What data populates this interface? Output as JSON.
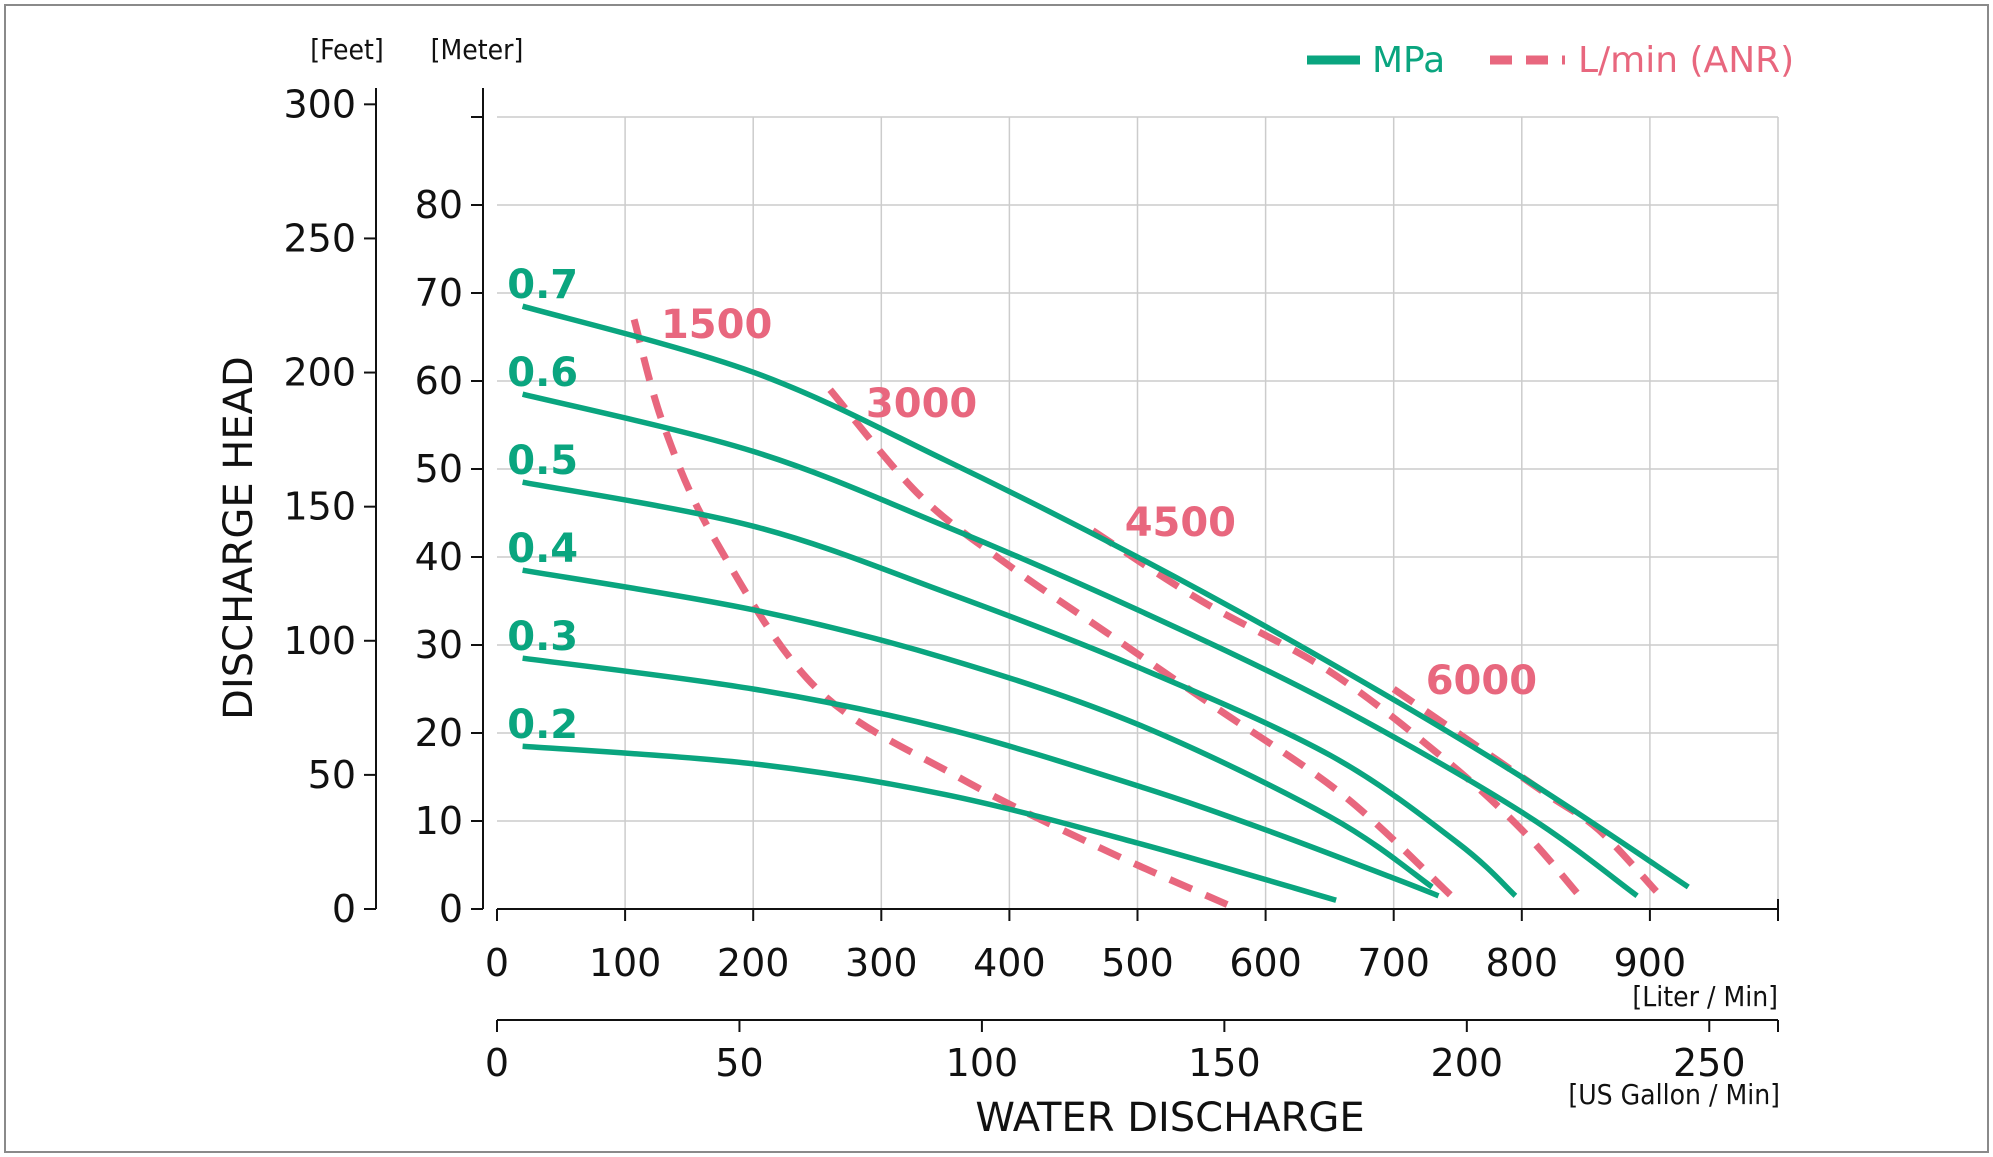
{
  "chart_data": {
    "type": "line",
    "title": "",
    "colors": {
      "pressure": "#0aa57f",
      "air": "#e8677e",
      "grid": "#cccccc"
    },
    "legend": {
      "placement": "top-right",
      "entries": [
        {
          "label": "MPa",
          "style": "solid",
          "color": "#0aa57f"
        },
        {
          "label": "L/min (ANR)",
          "style": "dashed",
          "color": "#e8677e"
        }
      ]
    },
    "x_axis": {
      "xlabel": "WATER DISCHARGE",
      "unit_liter": "[Liter / Min]",
      "unit_gallon": "[US Gallon / Min]",
      "liter_ticks": [
        "0",
        "100",
        "200",
        "300",
        "400",
        "500",
        "600",
        "700",
        "800",
        "900"
      ],
      "gallon_ticks": [
        "0",
        "50",
        "100",
        "150",
        "200",
        "250"
      ],
      "xlim": [
        0,
        1000
      ]
    },
    "y_axis": {
      "ylabel": "DISCHARGE HEAD",
      "unit_feet": "[Feet]",
      "unit_meter": "[Meter]",
      "meter_ticks": [
        "0",
        "10",
        "20",
        "30",
        "40",
        "50",
        "60",
        "70",
        "80"
      ],
      "feet_ticks": [
        "0",
        "50",
        "100",
        "150",
        "200",
        "250",
        "300"
      ],
      "ylim": [
        0,
        90
      ]
    },
    "grid": true,
    "series": [
      {
        "name": "0.7",
        "kind": "pressure",
        "x": [
          20,
          200,
          350,
          500,
          650,
          800,
          930
        ],
        "y": [
          68.5,
          61,
          51,
          40,
          28,
          15,
          2.5
        ]
      },
      {
        "name": "0.6",
        "kind": "pressure",
        "x": [
          20,
          200,
          350,
          500,
          650,
          800,
          890
        ],
        "y": [
          58.5,
          52,
          43.5,
          34,
          23.5,
          11,
          1.5
        ]
      },
      {
        "name": "0.5",
        "kind": "pressure",
        "x": [
          20,
          200,
          350,
          500,
          650,
          750,
          795
        ],
        "y": [
          48.5,
          43.5,
          36,
          27.5,
          17.5,
          7.5,
          1.5
        ]
      },
      {
        "name": "0.4",
        "kind": "pressure",
        "x": [
          20,
          200,
          350,
          500,
          650,
          730
        ],
        "y": [
          38.5,
          34,
          28.5,
          21,
          10.5,
          2.5
        ]
      },
      {
        "name": "0.3",
        "kind": "pressure",
        "x": [
          20,
          200,
          350,
          500,
          600,
          700,
          735
        ],
        "y": [
          28.5,
          25,
          20.5,
          14,
          9,
          3.5,
          1.5
        ]
      },
      {
        "name": "0.2",
        "kind": "pressure",
        "x": [
          20,
          200,
          350,
          500,
          655
        ],
        "y": [
          18.5,
          16.5,
          13,
          7.5,
          1
        ]
      },
      {
        "name": "1500",
        "kind": "air",
        "x": [
          107,
          130,
          170,
          250,
          360,
          470,
          570
        ],
        "y": [
          67,
          55,
          42,
          25,
          15,
          7,
          0.5
        ]
      },
      {
        "name": "3000",
        "kind": "air",
        "x": [
          260,
          330,
          400,
          480,
          560,
          660,
          745
        ],
        "y": [
          59,
          47,
          39,
          31,
          23,
          13,
          1.5
        ]
      },
      {
        "name": "4500",
        "kind": "air",
        "x": [
          465,
          550,
          650,
          740,
          800,
          845
        ],
        "y": [
          43,
          35,
          27,
          17,
          9,
          1.5
        ]
      },
      {
        "name": "6000",
        "kind": "air",
        "x": [
          700,
          760,
          820,
          860,
          905
        ],
        "y": [
          25,
          19,
          13,
          9,
          2
        ]
      }
    ],
    "curve_labels": [
      {
        "series": "0.7",
        "text": "0.7",
        "x": 8,
        "y": 71
      },
      {
        "series": "0.6",
        "text": "0.6",
        "x": 8,
        "y": 61
      },
      {
        "series": "0.5",
        "text": "0.5",
        "x": 8,
        "y": 51
      },
      {
        "series": "0.4",
        "text": "0.4",
        "x": 8,
        "y": 41
      },
      {
        "series": "0.3",
        "text": "0.3",
        "x": 8,
        "y": 31
      },
      {
        "series": "0.2",
        "text": "0.2",
        "x": 8,
        "y": 21
      },
      {
        "series": "1500",
        "text": "1500",
        "x": 128,
        "y": 66.5
      },
      {
        "series": "3000",
        "text": "3000",
        "x": 288,
        "y": 57.5
      },
      {
        "series": "4500",
        "text": "4500",
        "x": 490,
        "y": 44
      },
      {
        "series": "6000",
        "text": "6000",
        "x": 725,
        "y": 26
      }
    ]
  }
}
